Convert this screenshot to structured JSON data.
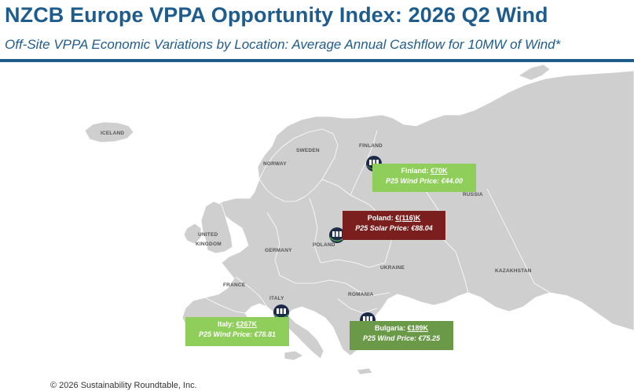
{
  "title": "NZCB Europe VPPA Opportunity Index: 2026 Q2 Wind",
  "subtitle": "Off-Site VPPA Economic Variations by Location: Average Annual Cashflow for 10MW of Wind*",
  "footer": "© 2026 Sustainability Roundtable, Inc.",
  "colors": {
    "title": "#1f5c8e",
    "land": "#cfcfcf",
    "border": "#ffffff",
    "green_light": "#8fce5a",
    "green_dark": "#6a9a47",
    "red_dark": "#7a1e1e",
    "pin_navy": "#1c2a4a"
  },
  "countries": [
    {
      "label": "ICELAND"
    },
    {
      "label": "SWEDEN"
    },
    {
      "label": "FINLAND"
    },
    {
      "label": "NORWAY"
    },
    {
      "label": "RUSSIA"
    },
    {
      "label": "UNITED"
    },
    {
      "label": "KINGDOM"
    },
    {
      "label": "GERMANY"
    },
    {
      "label": "POLAND"
    },
    {
      "label": "UKRAINE"
    },
    {
      "label": "FRANCE"
    },
    {
      "label": "KAZAKHSTAN"
    },
    {
      "label": "ITALY"
    },
    {
      "label": "ROMANIA"
    }
  ],
  "callouts": {
    "finland": {
      "name": "Finland: ",
      "value": "€70K",
      "price": "P25 Wind Price: €44.00"
    },
    "poland": {
      "name": "Poland: ",
      "value": "€(116)K",
      "price": "P25 Solar Price: €88.04"
    },
    "italy": {
      "name": "Italy: ",
      "value": "€267K",
      "price": "P25 Wind Price: €78.81"
    },
    "bulgaria": {
      "name": "Bulgaria: ",
      "value": "€189K",
      "price": "P25 Wind Price: €75.25"
    }
  },
  "pins": [
    {
      "name": "finland-pin-icon"
    },
    {
      "name": "poland-pin-icon"
    },
    {
      "name": "italy-pin-icon"
    },
    {
      "name": "bulgaria-pin-icon"
    }
  ]
}
